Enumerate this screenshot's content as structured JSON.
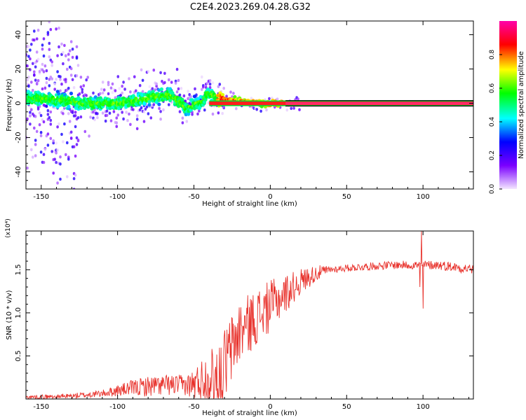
{
  "figure": {
    "title": "C2E4.2023.269.04.28.G32"
  },
  "chart_data": [
    {
      "type": "heatmap",
      "xlabel": "Height of straight line (km)",
      "ylabel": "Frequency (Hz)",
      "xlim": [
        -160,
        133
      ],
      "ylim": [
        -50,
        48
      ],
      "xticks": [
        -150,
        -100,
        -50,
        0,
        50,
        100
      ],
      "yticks": [
        -40,
        -20,
        0,
        20,
        40
      ],
      "colorbar": {
        "label": "Normalized spectral amplitude",
        "range": [
          0,
          1
        ],
        "ticks": [
          "0.0",
          "0.2",
          "0.4",
          "0.6",
          "0.8"
        ],
        "colors": [
          "#f4e6ff",
          "#7a00ff",
          "#0000ff",
          "#00ffff",
          "#00ff00",
          "#ffff00",
          "#ff0000",
          "#ff00aa"
        ]
      },
      "band_center": [
        {
          "x": -160,
          "y": 3
        },
        {
          "x": -140,
          "y": 2
        },
        {
          "x": -120,
          "y": 0
        },
        {
          "x": -100,
          "y": 0
        },
        {
          "x": -80,
          "y": 3
        },
        {
          "x": -65,
          "y": 5
        },
        {
          "x": -55,
          "y": -3
        },
        {
          "x": -50,
          "y": -1
        },
        {
          "x": -45,
          "y": 1
        },
        {
          "x": -40,
          "y": 6
        },
        {
          "x": -35,
          "y": 3
        },
        {
          "x": -30,
          "y": 2
        },
        {
          "x": -20,
          "y": 1
        },
        {
          "x": -10,
          "y": 0
        },
        {
          "x": 0,
          "y": 0
        },
        {
          "x": 133,
          "y": 0
        }
      ],
      "steady_tone_start": 10
    },
    {
      "type": "line",
      "xlabel": "Height of straight line (km)",
      "ylabel": "SNR (10 * v/v)",
      "y_multiplier": "(x10⁴)",
      "xlim": [
        -160,
        133
      ],
      "ylim": [
        0,
        1.95
      ],
      "xticks": [
        -150,
        -100,
        -50,
        0,
        50,
        100
      ],
      "yticks": [
        "0.5",
        "1.0",
        "1.5"
      ],
      "color": "#e8312b",
      "trend": [
        {
          "x": -160,
          "y": 0.02
        },
        {
          "x": -130,
          "y": 0.03
        },
        {
          "x": -110,
          "y": 0.06
        },
        {
          "x": -90,
          "y": 0.12
        },
        {
          "x": -70,
          "y": 0.15
        },
        {
          "x": -50,
          "y": 0.15
        },
        {
          "x": -45,
          "y": 0.2
        },
        {
          "x": -35,
          "y": 0.25
        },
        {
          "x": -30,
          "y": 0.35
        },
        {
          "x": -25,
          "y": 0.55
        },
        {
          "x": -20,
          "y": 0.75
        },
        {
          "x": -10,
          "y": 0.9
        },
        {
          "x": 0,
          "y": 1.05
        },
        {
          "x": 10,
          "y": 1.2
        },
        {
          "x": 20,
          "y": 1.35
        },
        {
          "x": 30,
          "y": 1.45
        },
        {
          "x": 40,
          "y": 1.5
        },
        {
          "x": 60,
          "y": 1.53
        },
        {
          "x": 80,
          "y": 1.55
        },
        {
          "x": 95,
          "y": 1.55
        },
        {
          "x": 110,
          "y": 1.55
        },
        {
          "x": 133,
          "y": 1.5
        }
      ],
      "noise_amp": [
        {
          "x": -160,
          "y": 0.02
        },
        {
          "x": -110,
          "y": 0.04
        },
        {
          "x": -80,
          "y": 0.12
        },
        {
          "x": -55,
          "y": 0.12
        },
        {
          "x": -45,
          "y": 0.25
        },
        {
          "x": -30,
          "y": 0.45
        },
        {
          "x": -15,
          "y": 0.35
        },
        {
          "x": 0,
          "y": 0.3
        },
        {
          "x": 20,
          "y": 0.15
        },
        {
          "x": 40,
          "y": 0.04
        },
        {
          "x": 90,
          "y": 0.05
        },
        {
          "x": 133,
          "y": 0.06
        }
      ],
      "spikes": [
        {
          "x": 99,
          "y": 1.95
        },
        {
          "x": 100,
          "y": 1.05
        },
        {
          "x": 98,
          "y": 1.3
        }
      ]
    }
  ]
}
